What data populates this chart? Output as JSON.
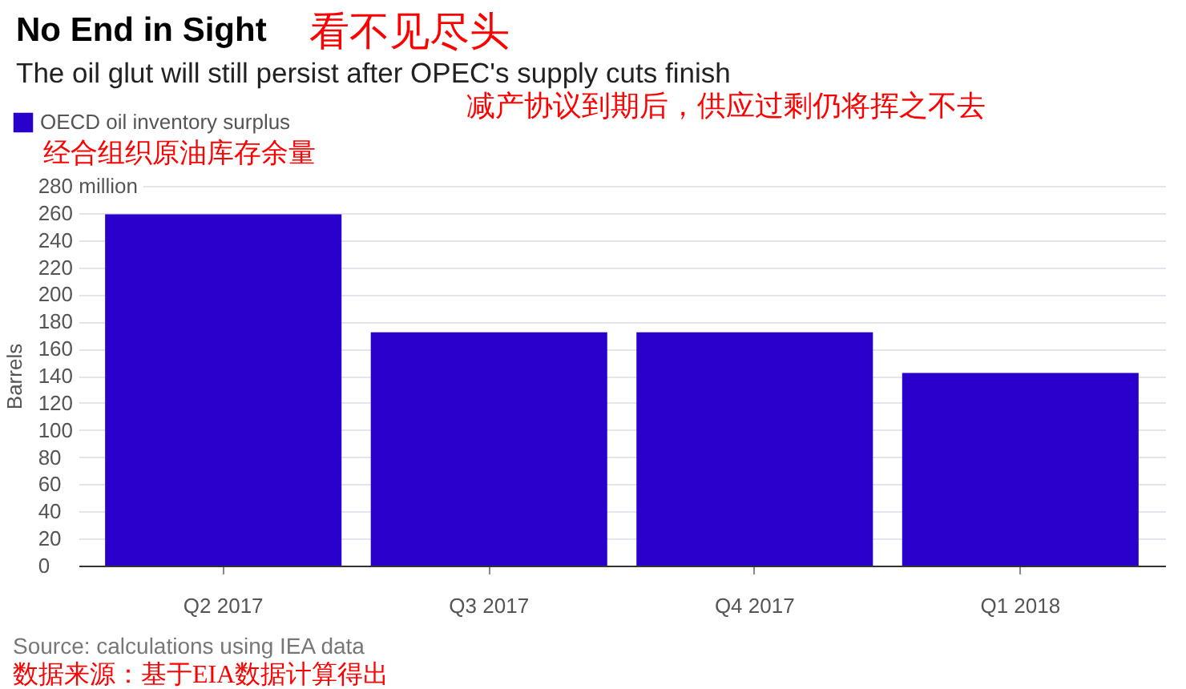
{
  "chart_data": {
    "type": "bar",
    "title": "No End in Sight",
    "subtitle": "The oil glut will still persist after OPEC's supply cuts finish",
    "ylabel": "Barrels",
    "categories": [
      "Q2 2017",
      "Q3 2017",
      "Q4 2017",
      "Q1 2018"
    ],
    "series": [
      {
        "name": "OECD oil inventory surplus",
        "color": "#2a00cc",
        "values": [
          259,
          172,
          172,
          142
        ]
      }
    ],
    "ylim": [
      0,
      280
    ],
    "yticks": [
      0,
      20,
      40,
      60,
      80,
      100,
      120,
      140,
      160,
      180,
      200,
      220,
      240,
      260,
      {
        "value": 280,
        "label": "280 million"
      }
    ],
    "grid": "y",
    "legend": "top left",
    "annotations": [
      "看不见尽头",
      "减产协议到期后，供应过剩仍将挥之不去",
      "经合组织原油库存余量",
      "Source: calculations using IEA data",
      "数据来源：基于EIA数据计算得出"
    ]
  }
}
